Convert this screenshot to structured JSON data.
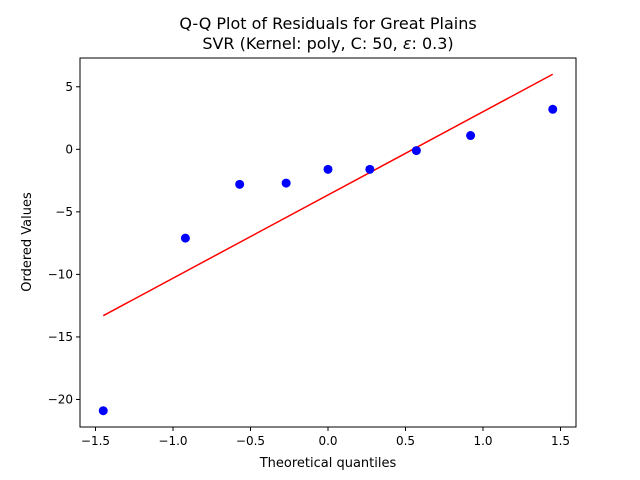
{
  "chart_data": {
    "type": "scatter",
    "title": "Q-Q Plot of Residuals for Great Plains",
    "subtitle_prefix": "SVR (Kernel: poly, C: 50, ",
    "subtitle_symbol": "ε",
    "subtitle_suffix": ": 0.3)",
    "xlabel": "Theoretical quantiles",
    "ylabel": "Ordered Values",
    "xlim": [
      -1.6,
      1.6
    ],
    "ylim": [
      -22.2,
      7.3
    ],
    "xticks": [
      -1.5,
      -1.0,
      -0.5,
      0.0,
      0.5,
      1.0,
      1.5
    ],
    "xtick_labels": [
      "−1.5",
      "−1.0",
      "−0.5",
      "0.0",
      "0.5",
      "1.0",
      "1.5"
    ],
    "yticks": [
      5,
      0,
      -5,
      -10,
      -15,
      -20
    ],
    "ytick_labels": [
      "5",
      "0",
      "−5",
      "−10",
      "−15",
      "−20"
    ],
    "grid": false,
    "series": [
      {
        "kind": "points",
        "color": "#0000ff",
        "x": [
          -1.45,
          -0.92,
          -0.57,
          -0.27,
          0.0,
          0.27,
          0.57,
          0.92,
          1.45
        ],
        "y": [
          -20.9,
          -7.1,
          -2.8,
          -2.7,
          -1.6,
          -1.6,
          -0.1,
          1.1,
          3.2
        ]
      },
      {
        "kind": "line",
        "color": "#ff0000",
        "x": [
          -1.45,
          1.45
        ],
        "y": [
          -13.3,
          6.0
        ]
      }
    ]
  }
}
